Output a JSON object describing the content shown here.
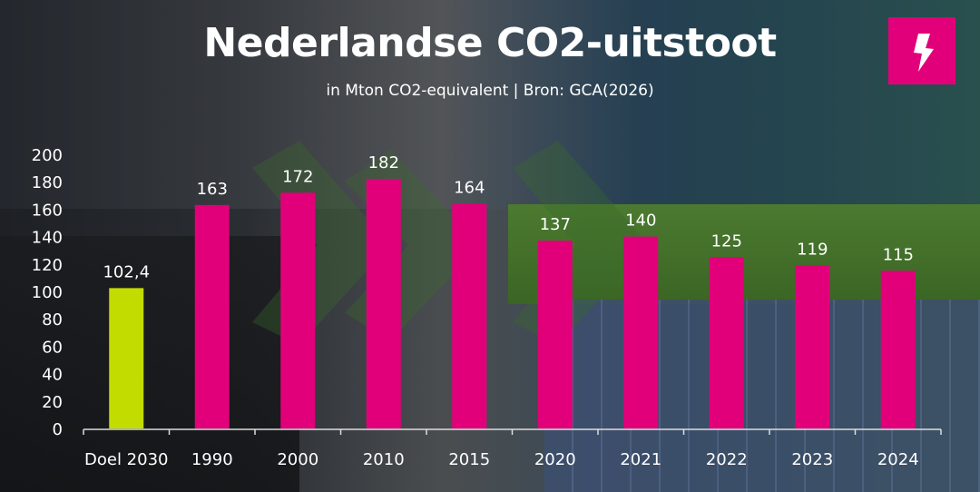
{
  "title": "Nederlandse CO2-uitstoot",
  "subtitle": "in Mton CO2-equivalent | Bron: GCA(2026)",
  "logo": {
    "icon": "lightning-bolt-icon",
    "color": "#e2007a"
  },
  "chart_data": {
    "type": "bar",
    "title": "Nederlandse CO2-uitstoot",
    "subtitle": "in Mton CO2-equivalent | Bron: GCA(2026)",
    "categories": [
      "Doel 2030",
      "1990",
      "2000",
      "2010",
      "2015",
      "2020",
      "2021",
      "2022",
      "2023",
      "2024"
    ],
    "values": [
      102.4,
      163,
      172,
      182,
      164,
      137,
      140,
      125,
      119,
      115
    ],
    "data_labels": [
      "102,4",
      "163",
      "172",
      "182",
      "164",
      "137",
      "140",
      "125",
      "119",
      "115"
    ],
    "colors": [
      "#c3dc00",
      "#e2007a",
      "#e2007a",
      "#e2007a",
      "#e2007a",
      "#e2007a",
      "#e2007a",
      "#e2007a",
      "#e2007a",
      "#e2007a"
    ],
    "ylim": [
      0,
      200
    ],
    "yticks": [
      0,
      20,
      40,
      60,
      80,
      100,
      120,
      140,
      160,
      180,
      200
    ],
    "grid": false,
    "xlabel": "",
    "ylabel": ""
  }
}
